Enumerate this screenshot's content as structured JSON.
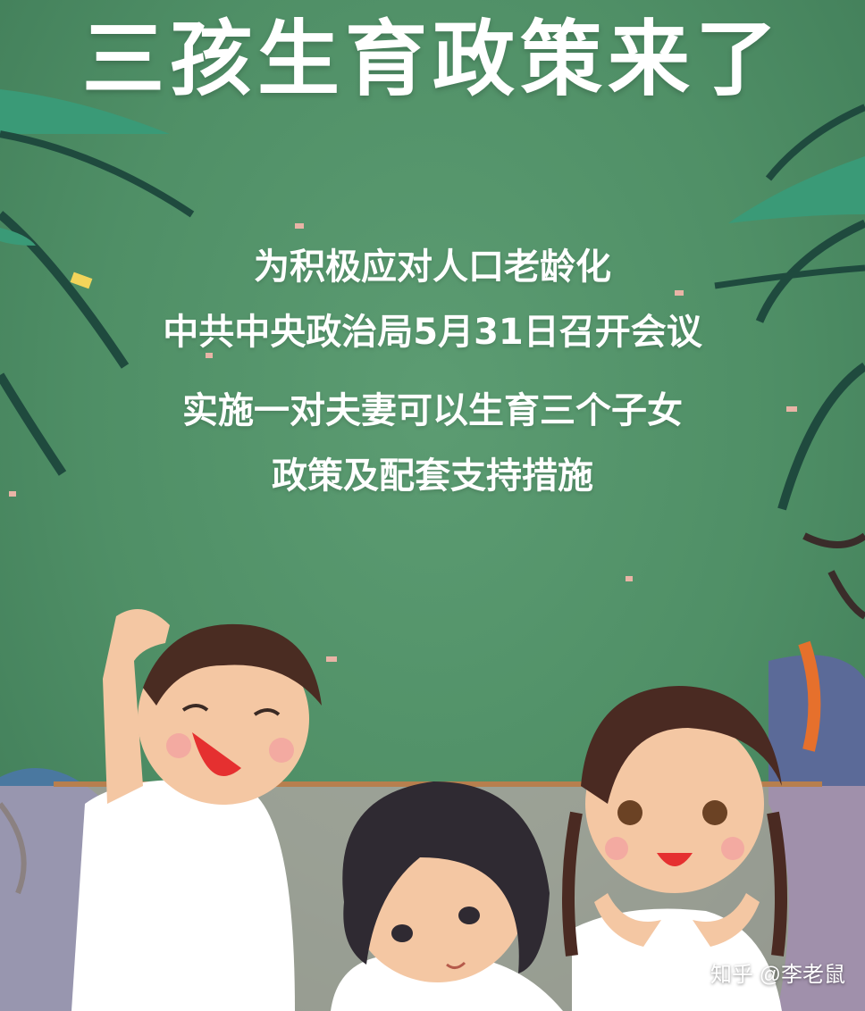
{
  "poster": {
    "title": "三孩生育政策来了",
    "lines": [
      "为积极应对人口老龄化",
      "中共中央政治局5月31日召开会议",
      "实施一对夫妻可以生育三个子女",
      "政策及配套支持措施"
    ],
    "watermark": "知乎 @李老鼠"
  },
  "colors": {
    "background": "#4f8f66",
    "leaf": "#2e7a5c",
    "text": "#ffffff"
  }
}
